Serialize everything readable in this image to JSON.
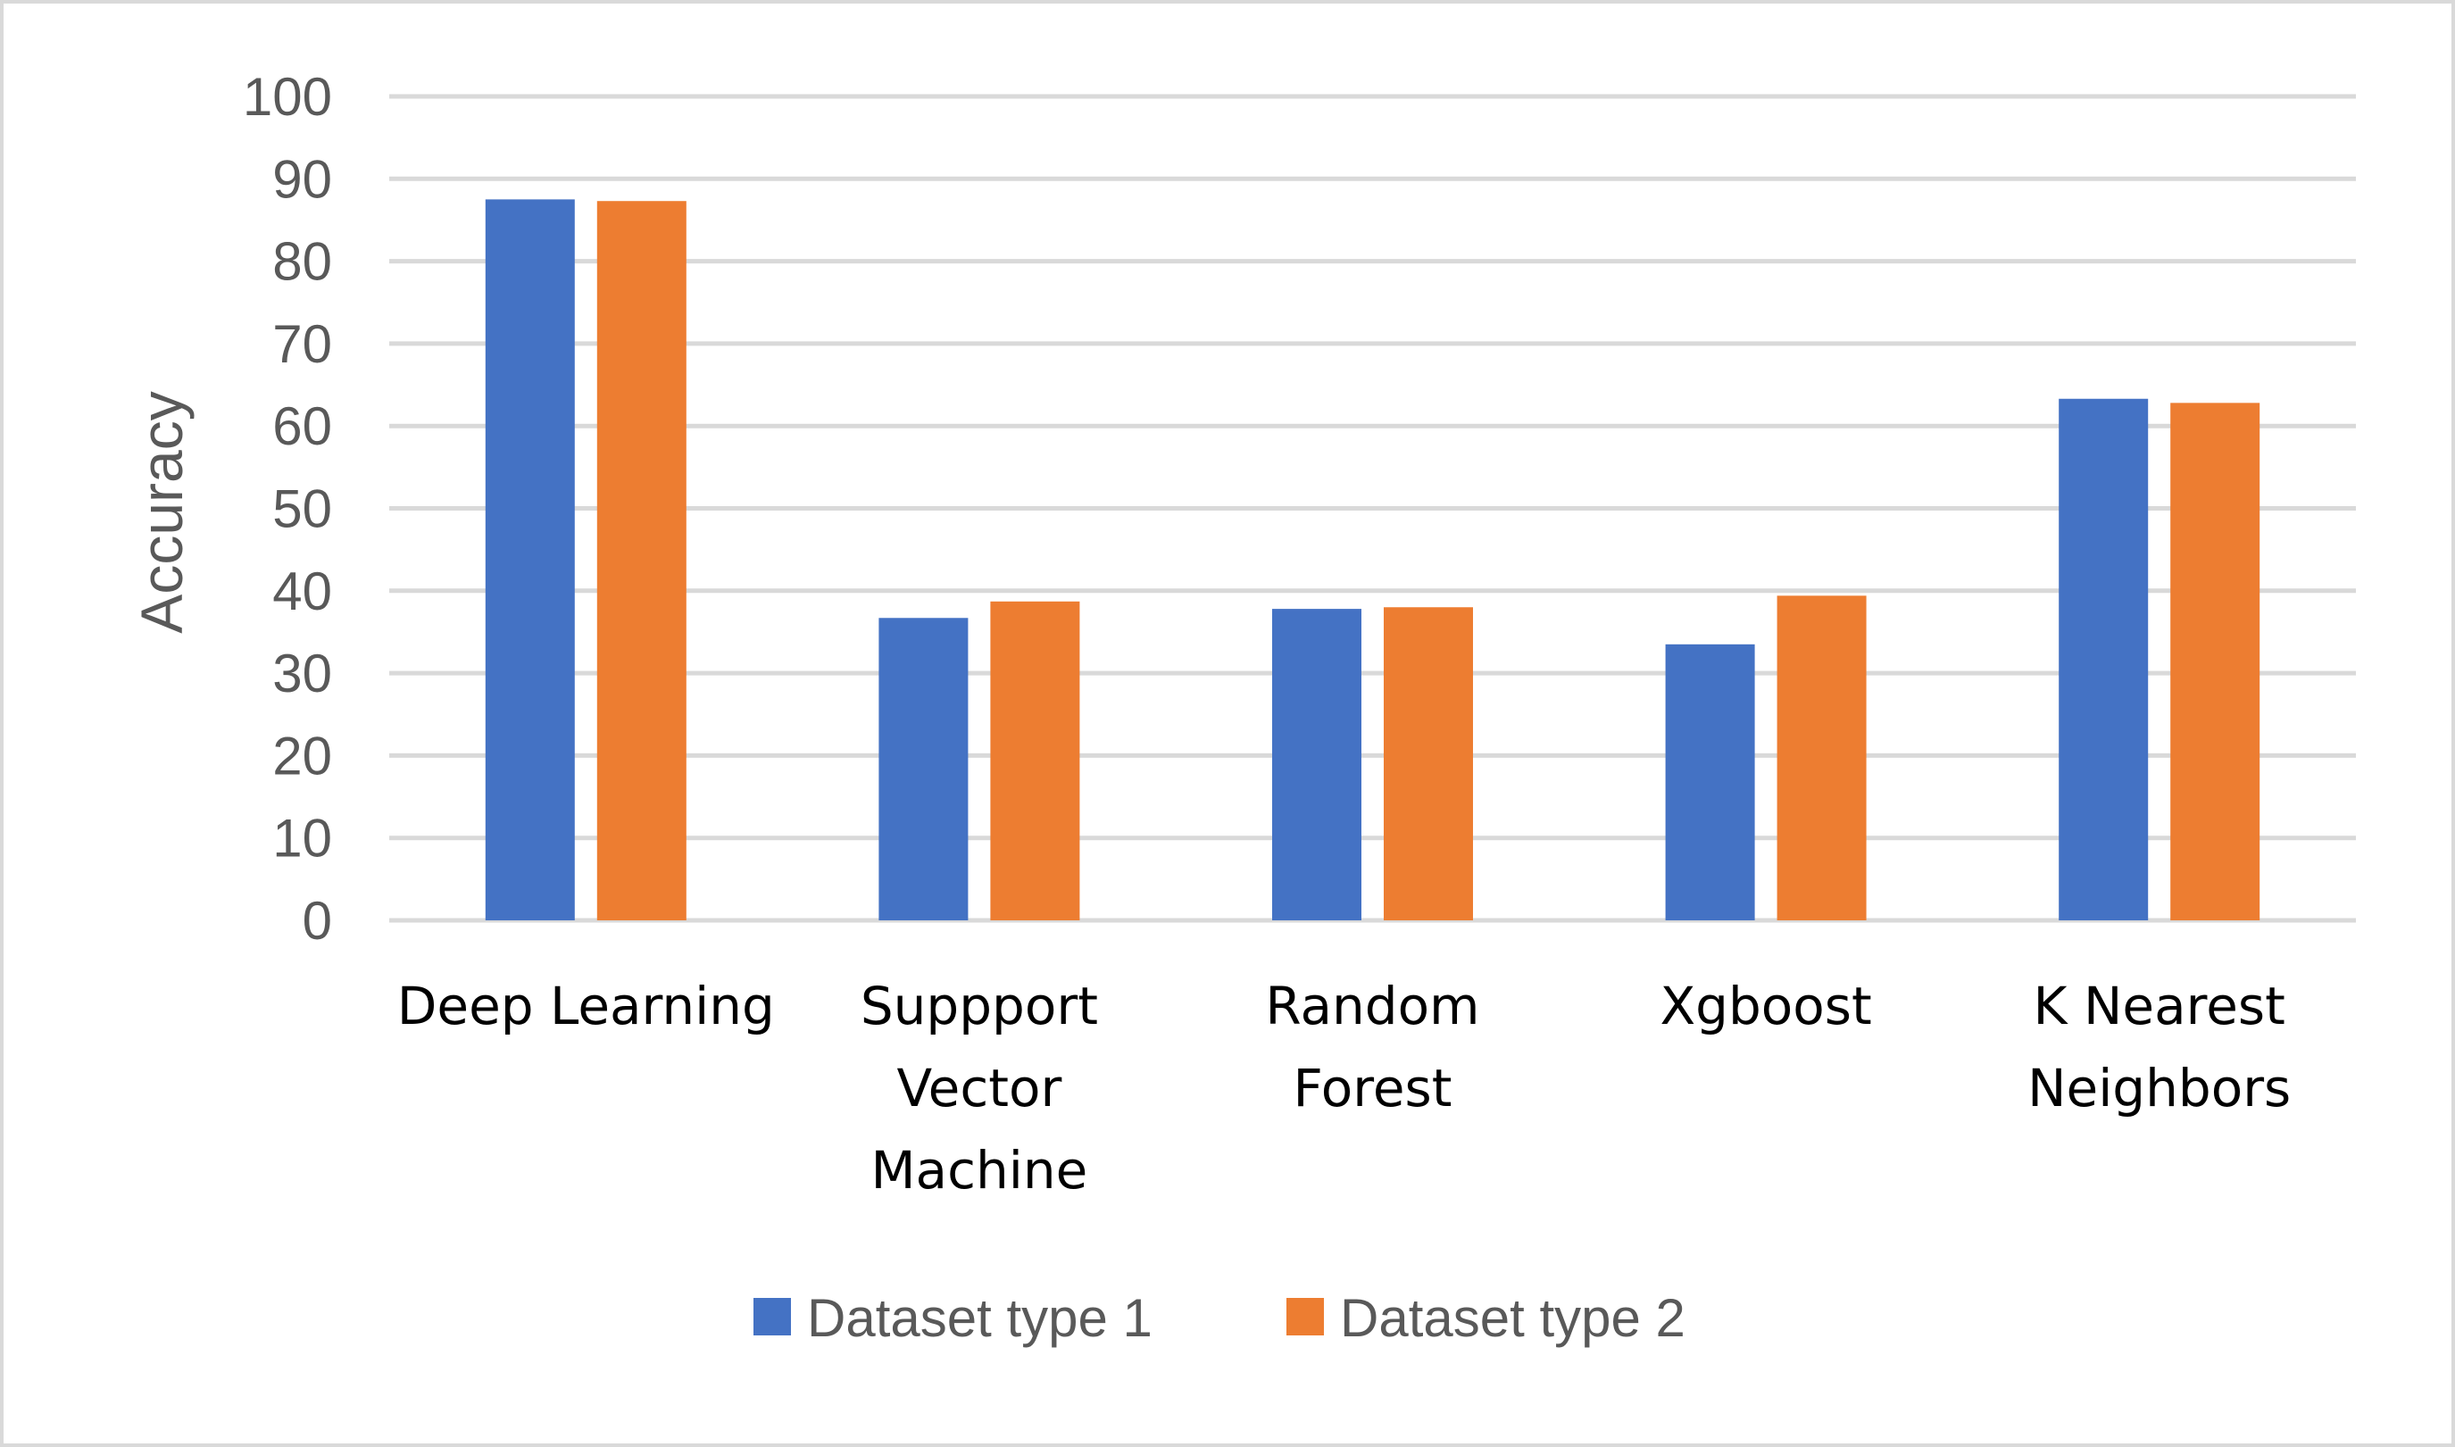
{
  "chart_data": {
    "type": "bar",
    "title": "",
    "xlabel": "",
    "ylabel": "Accuracy",
    "ylim": [
      0,
      100
    ],
    "yticks": [
      0,
      10,
      20,
      30,
      40,
      50,
      60,
      70,
      80,
      90,
      100
    ],
    "grid": true,
    "legend_position": "bottom",
    "categories": [
      [
        "Deep Learning"
      ],
      [
        "Suppport",
        "Vector",
        "Machine"
      ],
      [
        "Random",
        "Forest"
      ],
      [
        "Xgboost"
      ],
      [
        "K Nearest",
        "Neighbors"
      ]
    ],
    "series": [
      {
        "name": "Dataset type 1",
        "color": "#4472C4",
        "values": [
          87.5,
          36.7,
          37.8,
          33.5,
          63.3
        ]
      },
      {
        "name": "Dataset type 2",
        "color": "#ED7D31",
        "values": [
          87.3,
          38.7,
          38.0,
          39.4,
          62.8
        ]
      }
    ]
  }
}
